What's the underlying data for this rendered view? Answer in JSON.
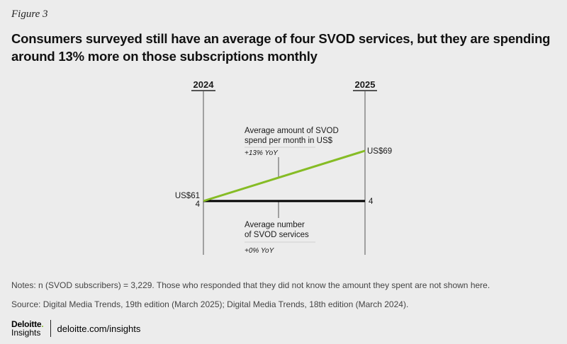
{
  "figure_label": "Figure 3",
  "title": "Consumers surveyed still have an average of four SVOD services, but they are spending around 13% more on those subscriptions monthly",
  "chart_data": {
    "type": "line",
    "x": [
      "2024",
      "2025"
    ],
    "series": [
      {
        "name": "Average amount of SVOD spend per month in US$",
        "values": [
          61,
          69
        ],
        "labels": [
          "US$61",
          "US$69"
        ],
        "change": "+13% YoY",
        "color": "#86bc25"
      },
      {
        "name": "Average number of SVOD services",
        "values": [
          4,
          4
        ],
        "labels": [
          "4",
          "4"
        ],
        "change": "+0% YoY",
        "color": "#000000"
      }
    ]
  },
  "annotations": {
    "spend_line1": "Average amount of SVOD",
    "spend_line2": "spend per month in US$",
    "spend_change": "+13% YoY",
    "services_line1": "Average number",
    "services_line2": "of SVOD services",
    "services_change": "+0% YoY"
  },
  "notes": "Notes: n (SVOD subscribers) = 3,229. Those who responded that they did not know the amount they spent are not shown here.",
  "source": "Source: Digital Media Trends, 19th edition (March 2025); Digital Media Trends, 18th edition (March 2024).",
  "footer": {
    "brand": "Deloitte",
    "brand_dot": ".",
    "brand_sub": "Insights",
    "link": "deloitte.com/insights"
  },
  "colors": {
    "accent_green": "#86bc25",
    "background": "#ececec"
  }
}
